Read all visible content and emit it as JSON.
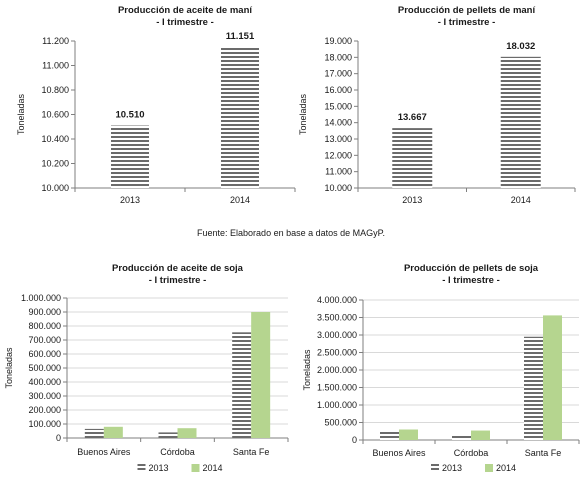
{
  "source_note": "Fuente: Elaborado en base a datos de MAGyP.",
  "colors": {
    "stripe_dark": "#6b6b6b",
    "stripe_light": "#ffffff",
    "green": "#b5d58f",
    "axis": "#7f7f7f",
    "grid": "#d9d9d9"
  },
  "chart_data": [
    {
      "type": "bar",
      "title": "Producción de aceite de maní",
      "subtitle": "- I trimestre -",
      "ylabel": "Toneladas",
      "xlabel": "",
      "categories": [
        "2013",
        "2014"
      ],
      "values": [
        10510,
        11151
      ],
      "data_labels": [
        "10.510",
        "11.151"
      ],
      "ylim": [
        10000,
        11200
      ],
      "yticks": [
        10000,
        10200,
        10400,
        10600,
        10800,
        11000,
        11200
      ],
      "ytick_labels": [
        "10.000",
        "10.200",
        "10.400",
        "10.600",
        "10.800",
        "11.000",
        "11.200"
      ],
      "grid": false,
      "fill": "striped"
    },
    {
      "type": "bar",
      "title": "Producción de pellets de maní",
      "subtitle": "- I trimestre -",
      "ylabel": "Toneladas",
      "xlabel": "",
      "categories": [
        "2013",
        "2014"
      ],
      "values": [
        13667,
        18032
      ],
      "data_labels": [
        "13.667",
        "18.032"
      ],
      "ylim": [
        10000,
        19000
      ],
      "yticks": [
        10000,
        11000,
        12000,
        13000,
        14000,
        15000,
        16000,
        17000,
        18000,
        19000
      ],
      "ytick_labels": [
        "10.000",
        "11.000",
        "12.000",
        "13.000",
        "14.000",
        "15.000",
        "16.000",
        "17.000",
        "18.000",
        "19.000"
      ],
      "grid": false,
      "fill": "striped"
    },
    {
      "type": "bar",
      "title": "Producción de aceite de soja",
      "subtitle": "- I trimestre -",
      "ylabel": "Toneladas",
      "xlabel": "",
      "categories": [
        "Buenos Aires",
        "Córdoba",
        "Santa Fe"
      ],
      "series": [
        {
          "name": "2013",
          "values": [
            65000,
            40000,
            755000
          ],
          "fill": "striped"
        },
        {
          "name": "2014",
          "values": [
            80000,
            70000,
            900000
          ],
          "fill": "green"
        }
      ],
      "ylim": [
        0,
        1000000
      ],
      "yticks": [
        0,
        100000,
        200000,
        300000,
        400000,
        500000,
        600000,
        700000,
        800000,
        900000,
        1000000
      ],
      "ytick_labels": [
        "0",
        "100.000",
        "200.000",
        "300.000",
        "400.000",
        "500.000",
        "600.000",
        "700.000",
        "800.000",
        "900.000",
        "1.000.000"
      ],
      "grid": true,
      "legend": "bottom"
    },
    {
      "type": "bar",
      "title": "Producción de pellets de soja",
      "subtitle": "- I trimestre -",
      "ylabel": "Toneladas",
      "xlabel": "",
      "categories": [
        "Buenos Aires",
        "Córdoba",
        "Santa Fe"
      ],
      "series": [
        {
          "name": "2013",
          "values": [
            270000,
            150000,
            2950000
          ],
          "fill": "striped"
        },
        {
          "name": "2014",
          "values": [
            300000,
            270000,
            3560000
          ],
          "fill": "green"
        }
      ],
      "ylim": [
        0,
        4000000
      ],
      "yticks": [
        0,
        500000,
        1000000,
        1500000,
        2000000,
        2500000,
        3000000,
        3500000,
        4000000
      ],
      "ytick_labels": [
        "0",
        "500.000",
        "1.000.000",
        "1.500.000",
        "2.000.000",
        "2.500.000",
        "3.000.000",
        "3.500.000",
        "4.000.000"
      ],
      "grid": true,
      "legend": "bottom"
    }
  ]
}
